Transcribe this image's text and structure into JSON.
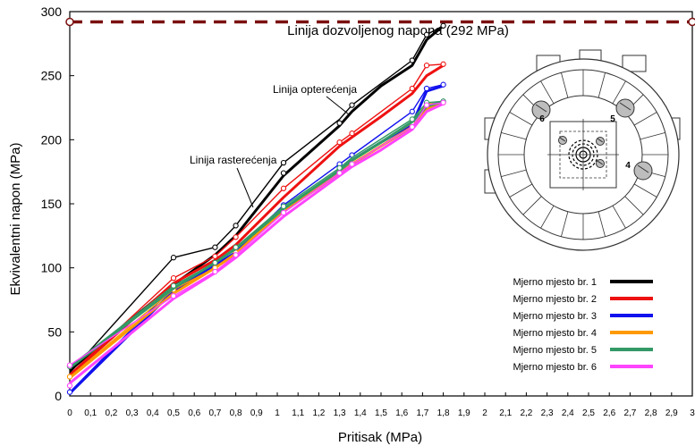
{
  "chart_data": {
    "type": "line",
    "title": "",
    "xlabel": "Pritisak  (MPa)",
    "ylabel": "Ekvivalentni napon  (MPa)",
    "xlim": [
      0,
      3
    ],
    "ylim": [
      0,
      300
    ],
    "x_ticks": [
      "0",
      "0,1",
      "0,2",
      "0,3",
      "0,4",
      "0,5",
      "0,6",
      "0,7",
      "0,8",
      "0,9",
      "1",
      "1,1",
      "1,2",
      "1,3",
      "1,4",
      "1,5",
      "1,6",
      "1,7",
      "1,8",
      "1,9",
      "2",
      "2,1",
      "2,2",
      "2,3",
      "2,4",
      "2,5",
      "2,6",
      "2,7",
      "2,8",
      "2,9",
      "3"
    ],
    "y_ticks": [
      "0",
      "50",
      "100",
      "150",
      "200",
      "250",
      "300"
    ],
    "grid": false,
    "legend_position": "right",
    "reference_line": {
      "label": "Linija dozvoljenog napona   (292 MPa)",
      "value": 292,
      "color": "#7b1010"
    },
    "annotations": [
      {
        "text": "Linija opterećenja",
        "x": 1.32,
        "y": 255
      },
      {
        "text": "Linija rasterećenja",
        "x": 0.98,
        "y": 200
      }
    ],
    "series": [
      {
        "name": "Mjerno mjesto br. 1",
        "color": "#000000",
        "loading": [
          [
            0,
            20
          ],
          [
            0.5,
            87
          ],
          [
            0.7,
            110
          ],
          [
            0.8,
            125
          ],
          [
            1.03,
            172
          ],
          [
            1.3,
            211
          ],
          [
            1.36,
            222
          ],
          [
            1.5,
            242
          ],
          [
            1.65,
            258
          ],
          [
            1.72,
            278
          ],
          [
            1.8,
            289
          ]
        ],
        "unloading": [
          [
            1.8,
            289
          ],
          [
            1.72,
            282
          ],
          [
            1.65,
            262
          ],
          [
            1.36,
            227
          ],
          [
            1.3,
            216
          ],
          [
            1.03,
            182
          ],
          [
            0.8,
            133
          ],
          [
            0.7,
            116
          ],
          [
            0.5,
            108
          ],
          [
            0,
            18
          ]
        ],
        "markers": [
          [
            0.5,
            108
          ],
          [
            0.7,
            116
          ],
          [
            0.8,
            133
          ],
          [
            1.03,
            182
          ],
          [
            1.03,
            174
          ],
          [
            1.3,
            213
          ],
          [
            1.36,
            227
          ],
          [
            1.65,
            262
          ],
          [
            1.72,
            282
          ],
          [
            1.8,
            289
          ]
        ]
      },
      {
        "name": "Mjerno mjesto br. 2",
        "color": "#ee1111",
        "loading": [
          [
            0,
            16
          ],
          [
            0.5,
            88
          ],
          [
            0.7,
            106
          ],
          [
            0.8,
            118
          ],
          [
            1.03,
            155
          ],
          [
            1.3,
            195
          ],
          [
            1.36,
            202
          ],
          [
            1.5,
            218
          ],
          [
            1.65,
            236
          ],
          [
            1.72,
            250
          ],
          [
            1.8,
            258
          ]
        ],
        "unloading": [
          [
            1.8,
            259
          ],
          [
            1.72,
            258
          ],
          [
            1.65,
            240
          ],
          [
            1.36,
            205
          ],
          [
            1.3,
            198
          ],
          [
            1.03,
            162
          ],
          [
            0.8,
            124
          ],
          [
            0.7,
            109
          ],
          [
            0.5,
            92
          ],
          [
            0,
            17
          ]
        ],
        "markers": [
          [
            0.5,
            92
          ],
          [
            0.7,
            109
          ],
          [
            0.8,
            124
          ],
          [
            1.03,
            162
          ],
          [
            1.3,
            198
          ],
          [
            1.36,
            205
          ],
          [
            1.65,
            240
          ],
          [
            1.72,
            258
          ],
          [
            1.8,
            259
          ]
        ]
      },
      {
        "name": "Mjerno mjesto br. 3",
        "color": "#1111ee",
        "loading": [
          [
            0,
            2
          ],
          [
            0.5,
            82
          ],
          [
            0.7,
            102
          ],
          [
            0.8,
            112
          ],
          [
            1.03,
            145
          ],
          [
            1.3,
            176
          ],
          [
            1.36,
            184
          ],
          [
            1.5,
            198
          ],
          [
            1.65,
            212
          ],
          [
            1.72,
            238
          ],
          [
            1.8,
            242
          ]
        ],
        "unloading": [
          [
            1.8,
            243
          ],
          [
            1.72,
            240
          ],
          [
            1.65,
            222
          ],
          [
            1.36,
            188
          ],
          [
            1.3,
            181
          ],
          [
            1.03,
            149
          ],
          [
            0.8,
            113
          ],
          [
            0.7,
            100
          ],
          [
            0.5,
            85
          ],
          [
            0,
            3
          ]
        ],
        "markers": [
          [
            0,
            3
          ],
          [
            0.5,
            85
          ],
          [
            0.7,
            100
          ],
          [
            0.8,
            113
          ],
          [
            1.03,
            149
          ],
          [
            1.3,
            181
          ],
          [
            1.36,
            188
          ],
          [
            1.65,
            222
          ],
          [
            1.72,
            240
          ],
          [
            1.8,
            243
          ]
        ]
      },
      {
        "name": "Mjerno mjesto br. 4",
        "color": "#ff9900",
        "loading": [
          [
            0,
            14
          ],
          [
            0.5,
            80
          ],
          [
            0.7,
            100
          ],
          [
            0.8,
            111
          ],
          [
            1.03,
            144
          ],
          [
            1.3,
            174
          ],
          [
            1.36,
            181
          ],
          [
            1.5,
            195
          ],
          [
            1.65,
            210
          ],
          [
            1.72,
            224
          ],
          [
            1.8,
            229
          ]
        ],
        "unloading": [
          [
            1.8,
            229
          ],
          [
            1.72,
            228
          ],
          [
            1.65,
            213
          ],
          [
            1.36,
            183
          ],
          [
            1.3,
            176
          ],
          [
            1.03,
            146
          ],
          [
            0.8,
            112
          ],
          [
            0.7,
            100
          ],
          [
            0.5,
            83
          ],
          [
            0,
            15
          ]
        ],
        "markers": [
          [
            0,
            15
          ],
          [
            0.5,
            83
          ],
          [
            0.7,
            100
          ],
          [
            0.8,
            112
          ],
          [
            1.03,
            146
          ],
          [
            1.3,
            176
          ],
          [
            1.65,
            213
          ],
          [
            1.72,
            228
          ],
          [
            1.8,
            229
          ]
        ]
      },
      {
        "name": "Mjerno mjesto br. 5",
        "color": "#339966",
        "loading": [
          [
            0,
            22
          ],
          [
            0.5,
            84
          ],
          [
            0.7,
            104
          ],
          [
            0.8,
            115
          ],
          [
            1.03,
            146
          ],
          [
            1.3,
            176
          ],
          [
            1.36,
            184
          ],
          [
            1.5,
            198
          ],
          [
            1.65,
            214
          ],
          [
            1.72,
            226
          ],
          [
            1.8,
            230
          ]
        ],
        "unloading": [
          [
            1.8,
            230
          ],
          [
            1.72,
            229
          ],
          [
            1.65,
            216
          ],
          [
            1.36,
            186
          ],
          [
            1.3,
            178
          ],
          [
            1.03,
            148
          ],
          [
            0.8,
            116
          ],
          [
            0.7,
            104
          ],
          [
            0.5,
            86
          ],
          [
            0,
            23
          ]
        ],
        "markers": [
          [
            0,
            23
          ],
          [
            0.5,
            86
          ],
          [
            0.7,
            104
          ],
          [
            0.8,
            116
          ],
          [
            1.03,
            148
          ],
          [
            1.3,
            178
          ],
          [
            1.65,
            216
          ],
          [
            1.72,
            229
          ],
          [
            1.8,
            230
          ]
        ]
      },
      {
        "name": "Mjerno mjesto br. 6",
        "color": "#ff44ff",
        "loading": [
          [
            0,
            10
          ],
          [
            0.5,
            76
          ],
          [
            0.7,
            96
          ],
          [
            0.8,
            108
          ],
          [
            1.03,
            140
          ],
          [
            1.3,
            172
          ],
          [
            1.36,
            179
          ],
          [
            1.5,
            192
          ],
          [
            1.65,
            208
          ],
          [
            1.72,
            222
          ],
          [
            1.8,
            228
          ]
        ],
        "unloading": [
          [
            1.8,
            229
          ],
          [
            1.72,
            227
          ],
          [
            1.65,
            210
          ],
          [
            1.36,
            181
          ],
          [
            1.3,
            174
          ],
          [
            1.03,
            143
          ],
          [
            0.8,
            110
          ],
          [
            0.7,
            97
          ],
          [
            0.5,
            78
          ],
          [
            0,
            24
          ]
        ],
        "markers": [
          [
            0,
            24
          ],
          [
            0,
            8
          ],
          [
            0.5,
            78
          ],
          [
            0.7,
            97
          ],
          [
            0.8,
            110
          ],
          [
            1.03,
            143
          ],
          [
            1.3,
            174
          ],
          [
            1.36,
            181
          ],
          [
            1.65,
            210
          ],
          [
            1.72,
            227
          ],
          [
            1.8,
            229
          ]
        ]
      }
    ],
    "inset_labels": [
      "6",
      "5",
      "4"
    ]
  }
}
